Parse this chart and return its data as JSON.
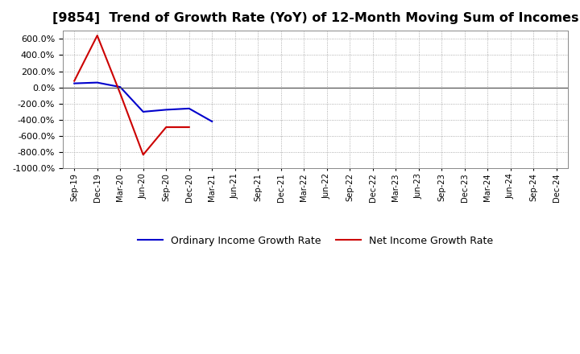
{
  "title": "[9854]  Trend of Growth Rate (YoY) of 12-Month Moving Sum of Incomes",
  "title_fontsize": 11.5,
  "ylim": [
    -1000,
    700
  ],
  "yticks": [
    -1000,
    -800,
    -600,
    -400,
    -200,
    0,
    200,
    400,
    600
  ],
  "background_color": "#ffffff",
  "plot_bg_color": "#ffffff",
  "grid_color": "#999999",
  "ordinary_color": "#0000cc",
  "net_color": "#cc0000",
  "legend_labels": [
    "Ordinary Income Growth Rate",
    "Net Income Growth Rate"
  ],
  "x_labels": [
    "Sep-19",
    "Dec-19",
    "Mar-20",
    "Jun-20",
    "Sep-20",
    "Dec-20",
    "Mar-21",
    "Jun-21",
    "Sep-21",
    "Dec-21",
    "Mar-22",
    "Jun-22",
    "Sep-22",
    "Dec-22",
    "Mar-23",
    "Jun-23",
    "Sep-23",
    "Dec-23",
    "Mar-24",
    "Jun-24",
    "Sep-24",
    "Dec-24"
  ],
  "ordinary_y": [
    50,
    60,
    5,
    -300,
    -275,
    -260,
    -420,
    null,
    null,
    null,
    null,
    null,
    null,
    null,
    null,
    null,
    null,
    null,
    null,
    null,
    null,
    null
  ],
  "net_y": [
    80,
    640,
    -75,
    -830,
    -490,
    -490,
    null,
    null,
    null,
    null,
    null,
    null,
    null,
    null,
    null,
    null,
    null,
    null,
    null,
    null,
    null,
    null
  ]
}
